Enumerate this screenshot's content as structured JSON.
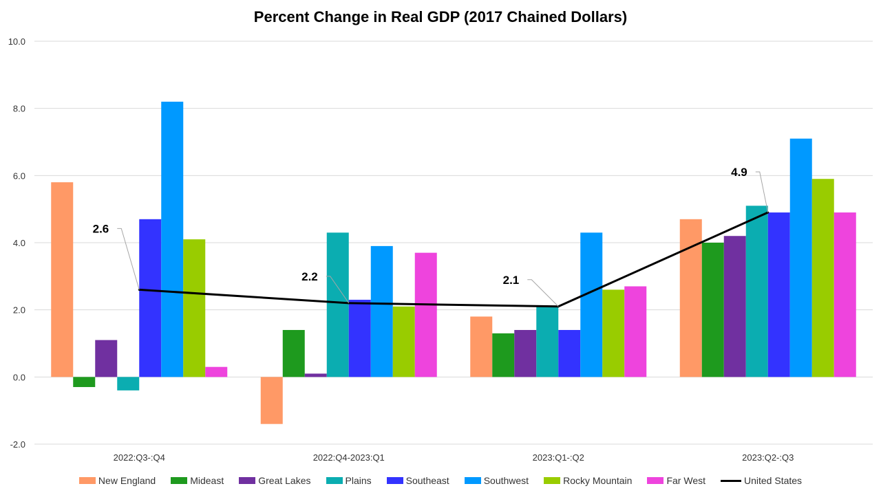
{
  "chart_data": {
    "type": "bar",
    "title": "Percent Change in Real GDP (2017 Chained Dollars)",
    "xlabel": "",
    "ylabel": "",
    "ylim": [
      -2.0,
      10.0
    ],
    "yticks": [
      "-2.0",
      "0.0",
      "2.0",
      "4.0",
      "6.0",
      "8.0",
      "10.0"
    ],
    "grid": true,
    "legend_position": "bottom",
    "categories": [
      "2022:Q3-:Q4",
      "2022:Q4-2023:Q1",
      "2023:Q1-:Q2",
      "2023:Q2-:Q3"
    ],
    "series": [
      {
        "name": "New England",
        "color": "#FF9966",
        "values": [
          5.8,
          -1.4,
          1.8,
          4.7
        ]
      },
      {
        "name": "Mideast",
        "color": "#1E9A1E",
        "values": [
          -0.3,
          1.4,
          1.3,
          4.0
        ]
      },
      {
        "name": "Great Lakes",
        "color": "#7030A0",
        "values": [
          1.1,
          0.1,
          1.4,
          4.2
        ]
      },
      {
        "name": "Plains",
        "color": "#0BADB1",
        "values": [
          -0.4,
          4.3,
          2.1,
          5.1
        ]
      },
      {
        "name": "Southeast",
        "color": "#3333FF",
        "values": [
          4.7,
          2.3,
          1.4,
          4.9
        ]
      },
      {
        "name": "Southwest",
        "color": "#0099FF",
        "values": [
          8.2,
          3.9,
          4.3,
          7.1
        ]
      },
      {
        "name": "Rocky Mountain",
        "color": "#99CC00",
        "values": [
          4.1,
          2.1,
          2.6,
          5.9
        ]
      },
      {
        "name": "Far West",
        "color": "#EE44DD",
        "values": [
          0.3,
          3.7,
          2.7,
          4.9
        ]
      }
    ],
    "line_series": {
      "name": "United States",
      "color": "#000000",
      "values": [
        2.6,
        2.2,
        2.1,
        4.9
      ],
      "labels": [
        "2.6",
        "2.2",
        "2.1",
        "4.9"
      ]
    }
  }
}
